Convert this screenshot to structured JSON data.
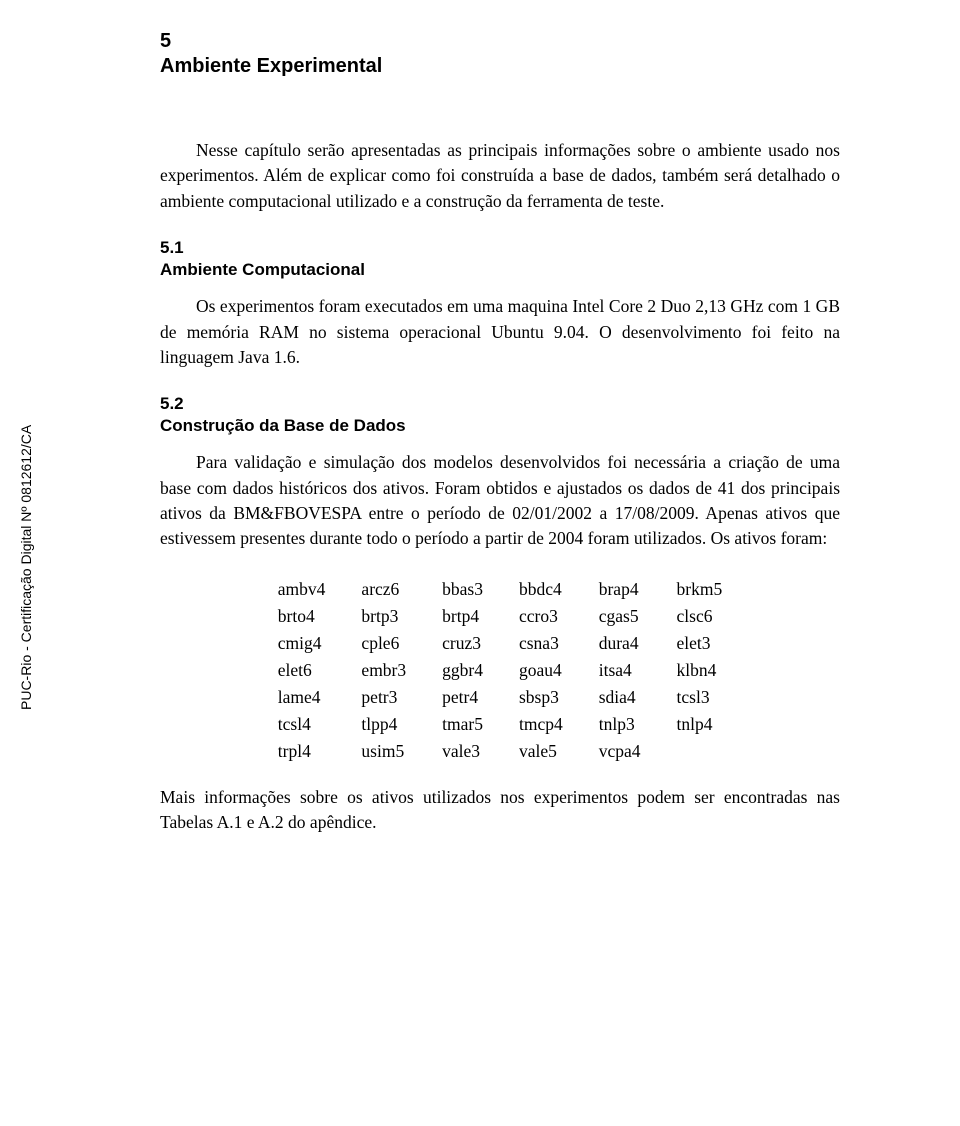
{
  "sidebar": {
    "certification": "PUC-Rio - Certificação Digital Nº 0812612/CA"
  },
  "chapter": {
    "num": "5",
    "title": "Ambiente Experimental"
  },
  "intro": {
    "p1": "Nesse capítulo serão apresentadas as principais informações sobre o ambiente usado nos experimentos. Além de explicar como foi construída a base de dados, também será detalhado o ambiente computacional utilizado e a construção da ferramenta de teste."
  },
  "section1": {
    "num": "5.1",
    "title": "Ambiente Computacional",
    "p1": "Os experimentos foram executados em uma maquina Intel Core 2 Duo 2,13 GHz com 1 GB de memória RAM no sistema operacional Ubuntu 9.04. O desenvolvimento foi feito na linguagem Java 1.6."
  },
  "section2": {
    "num": "5.2",
    "title": "Construção da Base de Dados",
    "p1": "Para validação e simulação dos modelos desenvolvidos foi necessária a criação de uma base com dados históricos dos ativos. Foram obtidos e ajustados os dados de 41 dos principais ativos da BM&FBOVESPA entre o período de 02/01/2002 a 17/08/2009. Apenas ativos que estivessem presentes durante todo o período a partir de 2004 foram utilizados. Os ativos foram:"
  },
  "tickers": {
    "rows": [
      [
        "ambv4",
        "arcz6",
        "bbas3",
        "bbdc4",
        "brap4",
        "brkm5"
      ],
      [
        "brto4",
        "brtp3",
        "brtp4",
        "ccro3",
        "cgas5",
        "clsc6"
      ],
      [
        "cmig4",
        "cple6",
        "cruz3",
        "csna3",
        "dura4",
        "elet3"
      ],
      [
        "elet6",
        "embr3",
        "ggbr4",
        "goau4",
        "itsa4",
        "klbn4"
      ],
      [
        "lame4",
        "petr3",
        "petr4",
        "sbsp3",
        "sdia4",
        "tcsl3"
      ],
      [
        "tcsl4",
        "tlpp4",
        "tmar5",
        "tmcp4",
        "tnlp3",
        "tnlp4"
      ],
      [
        "trpl4",
        "usim5",
        "vale3",
        "vale5",
        "vcpa4",
        ""
      ]
    ]
  },
  "closing": {
    "p1": "Mais informações sobre os ativos utilizados nos experimentos podem ser encontradas nas Tabelas A.1 e A.2 do apêndice."
  }
}
